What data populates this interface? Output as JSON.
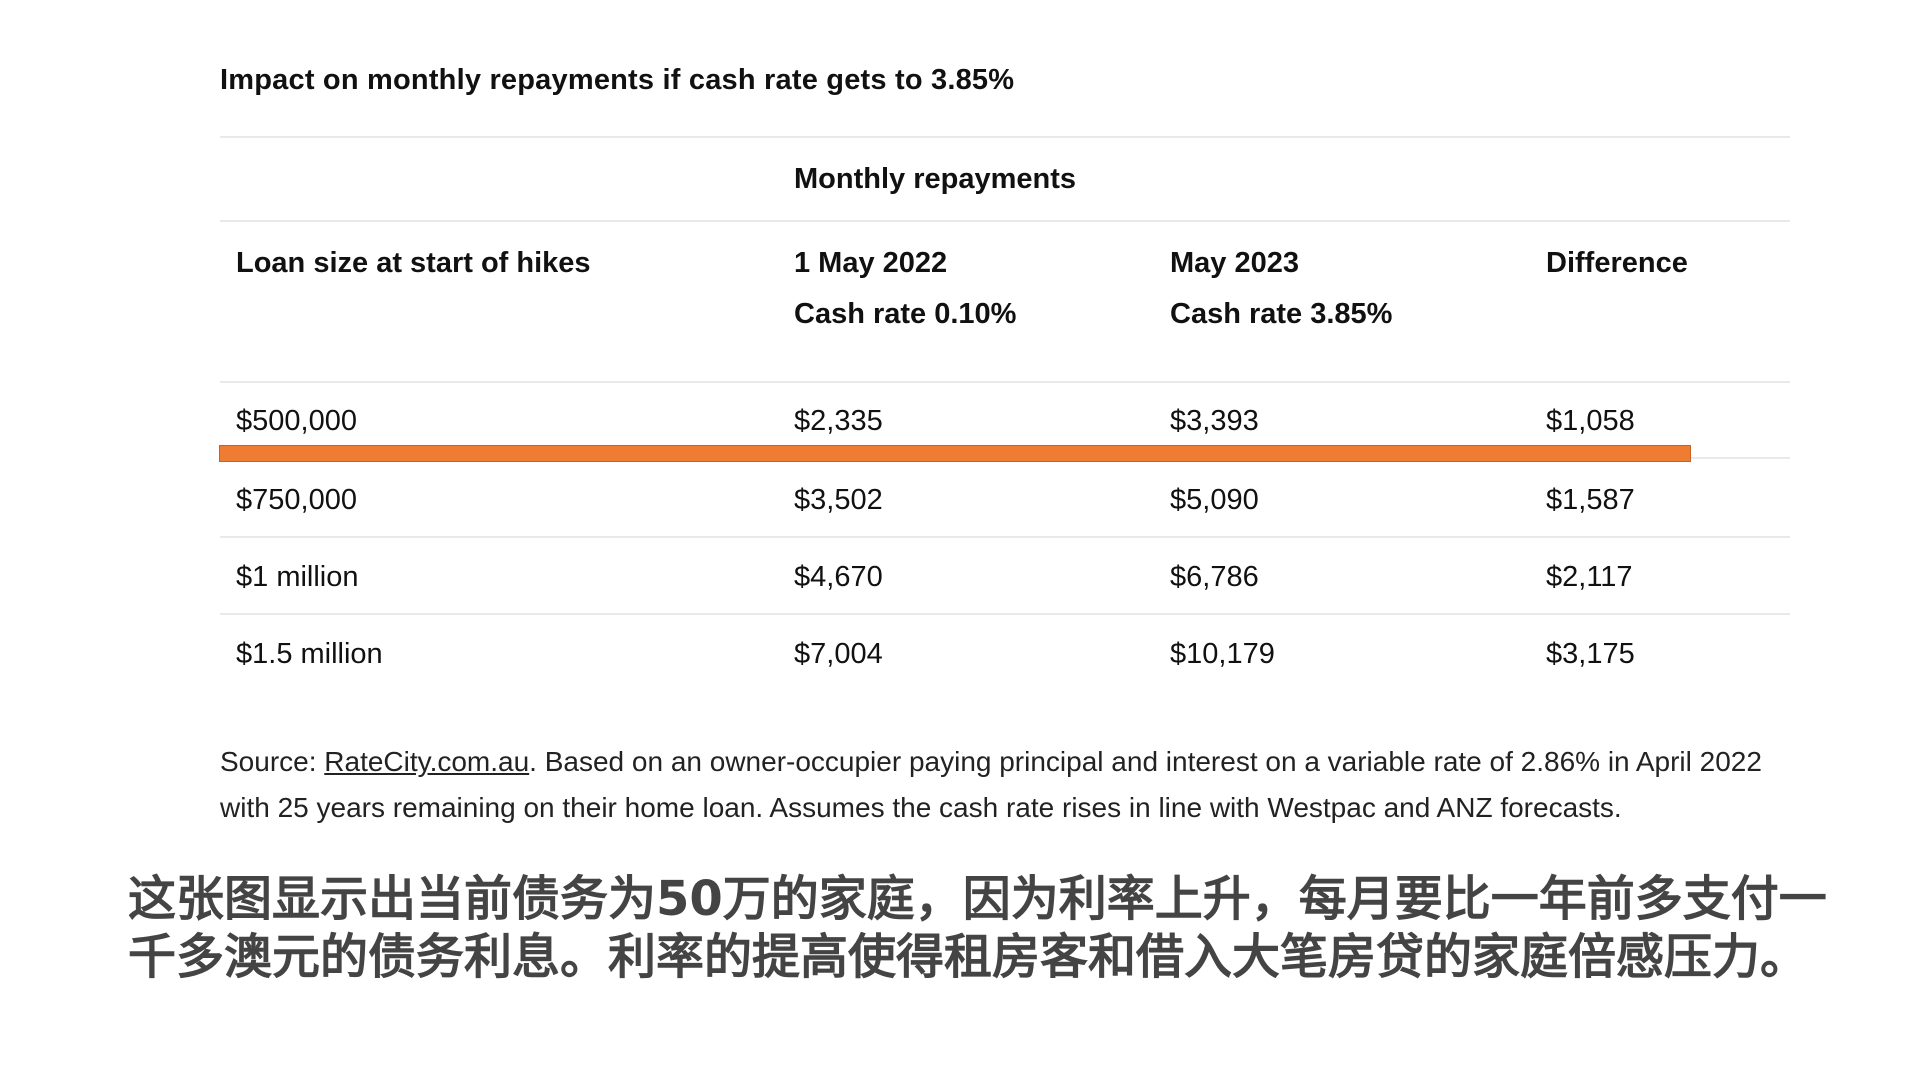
{
  "title": "Impact on monthly repayments if cash rate gets to 3.85%",
  "table": {
    "group_header": "Monthly repayments",
    "columns": [
      {
        "line1": "Loan size at start of hikes",
        "line2": ""
      },
      {
        "line1": "1 May 2022",
        "line2": "Cash rate 0.10%"
      },
      {
        "line1": "May 2023",
        "line2": "Cash rate 3.85%"
      },
      {
        "line1": "Difference",
        "line2": ""
      }
    ],
    "rows": [
      [
        "$500,000",
        "$2,335",
        "$3,393",
        "$1,058"
      ],
      [
        "$750,000",
        "$3,502",
        "$5,090",
        "$1,587"
      ],
      [
        "$1 million",
        "$4,670",
        "$6,786",
        "$2,117"
      ],
      [
        "$1.5 million",
        "$7,004",
        "$10,179",
        "$3,175"
      ]
    ],
    "highlight_color": "#ee7d33"
  },
  "source": {
    "prefix": "Source: ",
    "link_text": "RateCity.com.au",
    "text": ". Based on an owner-occupier paying principal and interest on a variable rate of 2.86% in April 2022 with 25 years remaining on their home loan. Assumes the cash rate rises in line with Westpac and ANZ forecasts."
  },
  "caption": "这张图显示出当前债务为50万的家庭，因为利率上升，每月要比一年前多支付一千多澳元的债务利息。利率的提高使得租房客和借入大笔房贷的家庭倍感压力。"
}
